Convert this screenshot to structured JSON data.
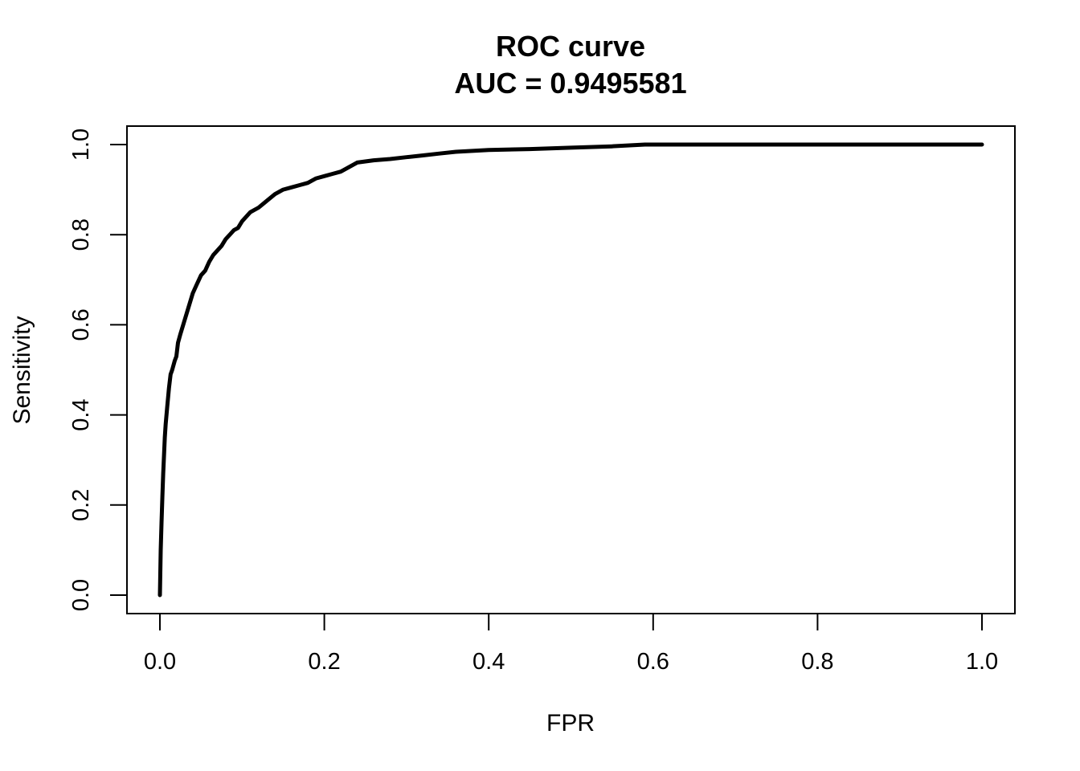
{
  "chart_data": {
    "type": "line",
    "title": "ROC curve",
    "subtitle": "AUC = 0.9495581",
    "xlabel": "FPR",
    "ylabel": "Sensitivity",
    "xlim": [
      0,
      1
    ],
    "ylim": [
      0,
      1
    ],
    "x_ticks": [
      "0.0",
      "0.2",
      "0.4",
      "0.6",
      "0.8",
      "1.0"
    ],
    "y_ticks": [
      "0.0",
      "0.2",
      "0.4",
      "0.6",
      "0.8",
      "1.0"
    ],
    "grid": false,
    "legend": "none",
    "series": [
      {
        "color": "#000000",
        "points": [
          [
            0.0,
            0.0
          ],
          [
            0.001,
            0.1
          ],
          [
            0.002,
            0.16
          ],
          [
            0.003,
            0.22
          ],
          [
            0.004,
            0.27
          ],
          [
            0.005,
            0.31
          ],
          [
            0.006,
            0.35
          ],
          [
            0.007,
            0.38
          ],
          [
            0.009,
            0.42
          ],
          [
            0.011,
            0.46
          ],
          [
            0.013,
            0.49
          ],
          [
            0.015,
            0.5
          ],
          [
            0.018,
            0.52
          ],
          [
            0.02,
            0.53
          ],
          [
            0.022,
            0.56
          ],
          [
            0.025,
            0.58
          ],
          [
            0.03,
            0.61
          ],
          [
            0.035,
            0.64
          ],
          [
            0.04,
            0.67
          ],
          [
            0.045,
            0.69
          ],
          [
            0.05,
            0.71
          ],
          [
            0.055,
            0.72
          ],
          [
            0.06,
            0.74
          ],
          [
            0.065,
            0.755
          ],
          [
            0.07,
            0.765
          ],
          [
            0.075,
            0.775
          ],
          [
            0.08,
            0.79
          ],
          [
            0.085,
            0.8
          ],
          [
            0.09,
            0.81
          ],
          [
            0.095,
            0.815
          ],
          [
            0.1,
            0.83
          ],
          [
            0.105,
            0.84
          ],
          [
            0.11,
            0.85
          ],
          [
            0.12,
            0.86
          ],
          [
            0.13,
            0.875
          ],
          [
            0.14,
            0.89
          ],
          [
            0.15,
            0.9
          ],
          [
            0.16,
            0.905
          ],
          [
            0.17,
            0.91
          ],
          [
            0.18,
            0.915
          ],
          [
            0.19,
            0.925
          ],
          [
            0.2,
            0.93
          ],
          [
            0.21,
            0.935
          ],
          [
            0.22,
            0.94
          ],
          [
            0.23,
            0.95
          ],
          [
            0.24,
            0.96
          ],
          [
            0.26,
            0.965
          ],
          [
            0.28,
            0.968
          ],
          [
            0.3,
            0.972
          ],
          [
            0.32,
            0.976
          ],
          [
            0.34,
            0.98
          ],
          [
            0.36,
            0.984
          ],
          [
            0.4,
            0.988
          ],
          [
            0.45,
            0.99
          ],
          [
            0.5,
            0.993
          ],
          [
            0.55,
            0.996
          ],
          [
            0.59,
            1.0
          ],
          [
            0.7,
            1.0
          ],
          [
            0.8,
            1.0
          ],
          [
            0.9,
            1.0
          ],
          [
            1.0,
            1.0
          ]
        ]
      }
    ]
  }
}
